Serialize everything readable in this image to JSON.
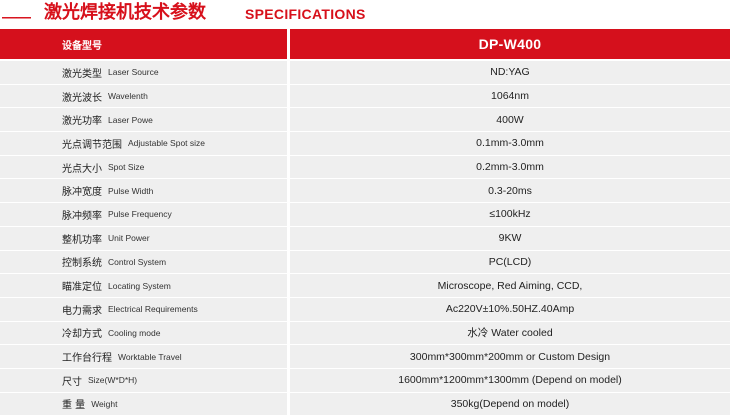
{
  "title": {
    "dash": "——",
    "chinese": "激光焊接机技术参数",
    "english": "SPECIFICATIONS"
  },
  "header": {
    "label": "设备型号",
    "model": "DP-W400"
  },
  "rows": [
    {
      "zh": "激光类型",
      "en": "Laser Source",
      "value": "ND:YAG"
    },
    {
      "zh": "激光波长",
      "en": "Wavelenth",
      "value": "1064nm"
    },
    {
      "zh": "激光功率",
      "en": "Laser Powe",
      "value": "400W"
    },
    {
      "zh": "光点调节范围",
      "en": "Adjustable Spot size",
      "value": "0.1mm-3.0mm"
    },
    {
      "zh": "光点大小",
      "en": "Spot Size",
      "value": "0.2mm-3.0mm"
    },
    {
      "zh": "脉冲宽度",
      "en": "Pulse Width",
      "value": "0.3-20ms"
    },
    {
      "zh": "脉冲频率",
      "en": "Pulse Frequency",
      "value": "≤100kHz"
    },
    {
      "zh": "整机功率",
      "en": "Unit Power",
      "value": "9KW"
    },
    {
      "zh": "控制系统",
      "en": "Control System",
      "value": "PC(LCD)"
    },
    {
      "zh": "瞄准定位",
      "en": "Locating System",
      "value": "Microscope, Red Aiming, CCD,"
    },
    {
      "zh": "电力需求",
      "en": "Electrical Requirements",
      "value": "Ac220V±10%.50HZ.40Amp"
    },
    {
      "zh": "冷却方式",
      "en": "Cooling mode",
      "value": "水冷 Water cooled"
    },
    {
      "zh": "工作台行程",
      "en": "Worktable Travel",
      "value": "300mm*300mm*200mm or Custom Design"
    },
    {
      "zh": "尺寸",
      "en": "Size(W*D*H)",
      "value": "1600mm*1200mm*1300mm (Depend on model)"
    },
    {
      "zh": "重 量",
      "en": "Weight",
      "value": "350kg(Depend on model)"
    }
  ],
  "colors": {
    "accent": "#d5101c",
    "row_bg": "#efefef"
  }
}
